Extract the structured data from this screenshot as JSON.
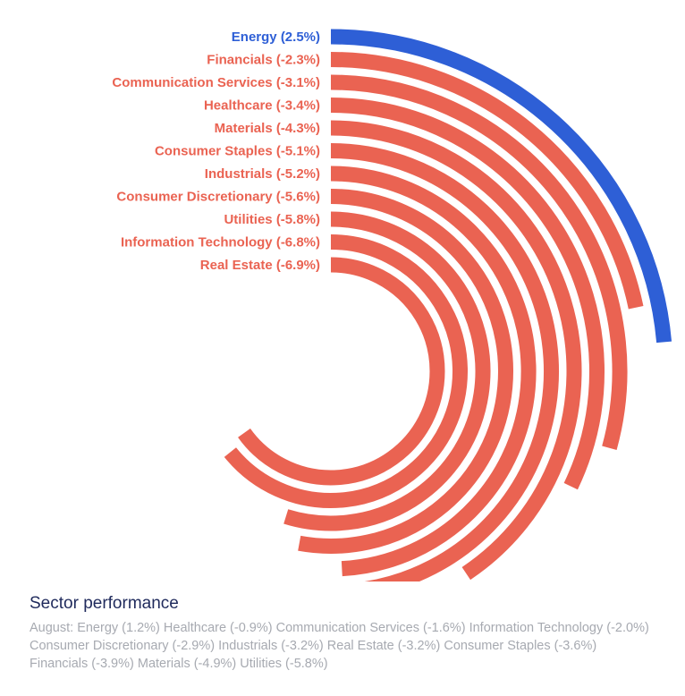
{
  "chart_data": {
    "type": "radial-bar",
    "title": "Sector performance",
    "value_range": [
      -7.5,
      2.5
    ],
    "series": [
      {
        "name": "Energy",
        "label": "Energy (2.5%)",
        "value": 2.5
      },
      {
        "name": "Financials",
        "label": "Financials (-2.3%)",
        "value": -2.3
      },
      {
        "name": "Communication Services",
        "label": "Communication Services (-3.1%)",
        "value": -3.1
      },
      {
        "name": "Healthcare",
        "label": "Healthcare (-3.4%)",
        "value": -3.4
      },
      {
        "name": "Materials",
        "label": "Materials (-4.3%)",
        "value": -4.3
      },
      {
        "name": "Consumer Staples",
        "label": "Consumer Staples (-5.1%)",
        "value": -5.1
      },
      {
        "name": "Industrials",
        "label": "Industrials (-5.2%)",
        "value": -5.2
      },
      {
        "name": "Consumer Discretionary",
        "label": "Consumer Discretionary (-5.6%)",
        "value": -5.6
      },
      {
        "name": "Utilities",
        "label": "Utilities (-5.8%)",
        "value": -5.8
      },
      {
        "name": "Information Technology",
        "label": "Information Technology (-6.8%)",
        "value": -6.8
      },
      {
        "name": "Real Estate",
        "label": "Real Estate (-6.9%)",
        "value": -6.9
      }
    ],
    "colors": {
      "positive": "#2e5fd6",
      "negative": "#ea6352"
    }
  },
  "caption": {
    "title": "Sector performance",
    "text": "August: Energy (1.2%) Healthcare (-0.9%) Communication Services (-1.6%) Information Technology (-2.0%) Consumer Discretionary (-2.9%) Industrials (-3.2%) Real Estate (-3.2%) Consumer Staples (-3.6%) Financials (-3.9%) Materials (-4.9%) Utilities (-5.8%)"
  }
}
